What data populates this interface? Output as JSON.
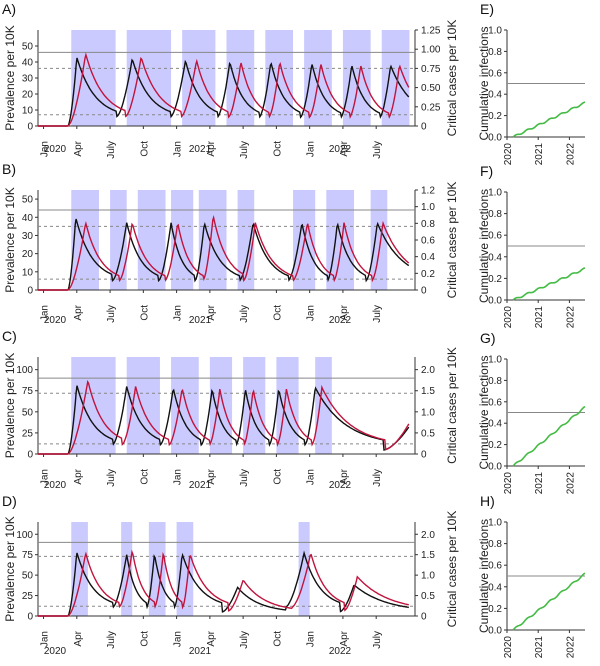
{
  "colors": {
    "shade": "#b8b8ff",
    "black": "#111111",
    "red": "#c0143c",
    "green": "#44bb44",
    "grid_solid": "#888888",
    "grid_dashed": "#888888"
  },
  "chart_data": [
    {
      "panel": "A)",
      "type": "line",
      "ylabel_left": "Prevalence per 10K",
      "ylabel_right": "Critical cases per 10K",
      "x_ticks": [
        "Jan",
        "Apr",
        "July",
        "Oct",
        "Jan",
        "Apr",
        "July",
        "Oct",
        "Jan",
        "Apr",
        "July"
      ],
      "year_labels": [
        "2020",
        "2021",
        "2022"
      ],
      "ylim_left": [
        0,
        60
      ],
      "yticks_left": [
        "0",
        "10",
        "20",
        "30",
        "40",
        "50"
      ],
      "ylim_right": [
        0,
        1.25
      ],
      "yticks_right": [
        "0",
        "0.25",
        "0.50",
        "0.75",
        "1.00",
        "1.25"
      ],
      "hlines_left": {
        "solid": 46,
        "dashed": [
          36,
          7
        ]
      },
      "shaded_months": [
        [
          3,
          7
        ],
        [
          8,
          12
        ],
        [
          13,
          16
        ],
        [
          17,
          19.5
        ],
        [
          20.5,
          23
        ],
        [
          24,
          26.5
        ],
        [
          27.5,
          30
        ],
        [
          31,
          33.5
        ]
      ],
      "series": [
        {
          "peak_months": [
            3.5,
            8.5,
            13.3,
            17.3,
            21.0,
            24.7,
            28.3,
            31.8
          ],
          "peak_values": [
            43,
            42,
            41,
            40,
            40,
            39,
            38,
            38
          ]
        },
        {
          "peak_months": [
            4.3,
            9.3,
            14.3,
            18.3,
            21.8,
            25.5,
            29.1,
            32.6
          ],
          "peak_values": [
            45,
            43,
            41,
            40,
            40,
            39,
            38,
            38
          ]
        }
      ]
    },
    {
      "panel": "B)",
      "type": "line",
      "ylabel_left": "Prevalence per 10K",
      "ylabel_right": "Critical cases per 10K",
      "x_ticks": [
        "Jan",
        "Apr",
        "July",
        "Oct",
        "Jan",
        "Apr",
        "July",
        "Oct",
        "Jan",
        "Apr",
        "July"
      ],
      "year_labels": [
        "2020",
        "2021",
        "2022"
      ],
      "ylim_left": [
        0,
        55
      ],
      "yticks_left": [
        "0",
        "10",
        "20",
        "30",
        "40",
        "50"
      ],
      "ylim_right": [
        0,
        1.2
      ],
      "yticks_right": [
        "0",
        "0.2",
        "0.4",
        "0.6",
        "0.8",
        "1.0",
        "1.2"
      ],
      "hlines_left": {
        "solid": 44,
        "dashed": [
          35,
          6
        ]
      },
      "shaded_months": [
        [
          3,
          5.5
        ],
        [
          6.5,
          8
        ],
        [
          9,
          11.5
        ],
        [
          12,
          14
        ],
        [
          14.5,
          17
        ],
        [
          18,
          19.5
        ],
        [
          23,
          25
        ],
        [
          26,
          28.5
        ],
        [
          30,
          31.5
        ]
      ],
      "series": [
        {
          "peak_months": [
            3.4,
            8.0,
            12.0,
            15.0,
            19.4,
            23.8,
            27.0,
            30.6
          ],
          "peak_values": [
            40,
            37,
            37,
            37,
            37,
            37,
            37,
            37
          ]
        },
        {
          "peak_months": [
            4.3,
            8.5,
            12.6,
            15.8,
            19.6,
            24.3,
            27.6,
            31.1
          ],
          "peak_values": [
            37,
            37,
            37,
            41,
            37,
            37,
            37,
            37
          ]
        }
      ]
    },
    {
      "panel": "C)",
      "type": "line",
      "ylabel_left": "Prevalence per 10K",
      "ylabel_right": "Critical cases per 10K",
      "x_ticks": [
        "Jan",
        "Apr",
        "July",
        "Oct",
        "Jan",
        "Apr",
        "July",
        "Oct",
        "Jan",
        "Apr",
        "July"
      ],
      "year_labels": [
        "2020",
        "2021",
        "2022"
      ],
      "ylim_left": [
        0,
        115
      ],
      "yticks_left": [
        "0",
        "25",
        "50",
        "75",
        "100"
      ],
      "ylim_right": [
        0,
        2.3
      ],
      "yticks_right": [
        "0",
        "0.5",
        "1.0",
        "1.5",
        "2.0"
      ],
      "hlines_left": {
        "solid": 90,
        "dashed": [
          72,
          12
        ]
      },
      "shaded_months": [
        [
          3,
          7
        ],
        [
          8,
          11
        ],
        [
          12,
          14.5
        ],
        [
          15.5,
          17.5
        ],
        [
          18.5,
          20.5
        ],
        [
          21.5,
          23.5
        ],
        [
          25,
          26.5
        ]
      ],
      "series": [
        {
          "peak_months": [
            3.5,
            8.0,
            12.2,
            15.7,
            18.7,
            21.7,
            25.0,
            33.5
          ],
          "peak_values": [
            82,
            80,
            78,
            77,
            77,
            77,
            79,
            33
          ]
        },
        {
          "peak_months": [
            4.5,
            8.8,
            13.0,
            16.4,
            19.4,
            22.4,
            25.6,
            33.5
          ],
          "peak_values": [
            87,
            80,
            78,
            77,
            77,
            77,
            79,
            37
          ]
        }
      ]
    },
    {
      "panel": "D)",
      "type": "line",
      "ylabel_left": "Prevalence per 10K",
      "ylabel_right": "Critical cases per 10K",
      "x_ticks": [
        "Jan",
        "Apr",
        "July",
        "Oct",
        "Jan",
        "Apr",
        "July",
        "Oct",
        "Jan",
        "Apr",
        "July"
      ],
      "year_labels": [
        "2020",
        "2021",
        "2022"
      ],
      "ylim_left": [
        0,
        115
      ],
      "yticks_left": [
        "0",
        "25",
        "50",
        "75",
        "100"
      ],
      "ylim_right": [
        0,
        2.3
      ],
      "yticks_right": [
        "0",
        "0.5",
        "1.0",
        "1.5",
        "2.0"
      ],
      "hlines_left": {
        "solid": 90,
        "dashed": [
          73,
          12
        ]
      },
      "shaded_months": [
        [
          3,
          4.5
        ],
        [
          7.5,
          8.5
        ],
        [
          10,
          11.5
        ],
        [
          12.5,
          14
        ],
        [
          23.5,
          24.5
        ]
      ],
      "series": [
        {
          "peak_months": [
            3.5,
            8.0,
            10.5,
            13.0,
            18.0,
            24.0,
            28.5
          ],
          "peak_values": [
            78,
            75,
            76,
            76,
            35,
            77,
            38
          ]
        },
        {
          "peak_months": [
            4.3,
            8.5,
            11.3,
            13.7,
            18.5,
            24.6,
            28.8
          ],
          "peak_values": [
            77,
            80,
            78,
            76,
            44,
            77,
            48
          ]
        }
      ]
    },
    {
      "panel": "E)",
      "type": "line",
      "ylabel": "Cumulative infections",
      "xlim": [
        2020,
        2022.5
      ],
      "x_ticks": [
        "2020",
        "2021",
        "2022"
      ],
      "ylim": [
        0,
        1.0
      ],
      "yticks": [
        "0.0",
        "0.2",
        "0.4",
        "0.6",
        "0.8",
        "1.0"
      ],
      "hline": 0.5,
      "series": [
        {
          "x": [
            2020.2,
            2022.5
          ],
          "y": [
            0.0,
            0.32
          ]
        }
      ]
    },
    {
      "panel": "F)",
      "type": "line",
      "ylabel": "Cumulative infections",
      "xlim": [
        2020,
        2022.5
      ],
      "x_ticks": [
        "2020",
        "2021",
        "2022"
      ],
      "ylim": [
        0,
        1.0
      ],
      "yticks": [
        "0.0",
        "0.2",
        "0.4",
        "0.6",
        "0.8",
        "1.0"
      ],
      "hline": 0.5,
      "series": [
        {
          "x": [
            2020.2,
            2022.5
          ],
          "y": [
            0.0,
            0.29
          ]
        }
      ]
    },
    {
      "panel": "G)",
      "type": "line",
      "ylabel": "Cumulative infections",
      "xlim": [
        2020,
        2022.5
      ],
      "x_ticks": [
        "2020",
        "2021",
        "2022"
      ],
      "ylim": [
        0,
        1.0
      ],
      "yticks": [
        "0.0",
        "0.2",
        "0.4",
        "0.6",
        "0.8",
        "1.0"
      ],
      "hline": 0.5,
      "series": [
        {
          "x": [
            2020.2,
            2022.5
          ],
          "y": [
            0.0,
            0.55
          ]
        }
      ]
    },
    {
      "panel": "H)",
      "type": "line",
      "ylabel": "Cumulative infections",
      "xlim": [
        2020,
        2022.5
      ],
      "x_ticks": [
        "2020",
        "2021",
        "2022"
      ],
      "ylim": [
        0,
        1.0
      ],
      "yticks": [
        "0.0",
        "0.2",
        "0.4",
        "0.6",
        "0.8",
        "1.0"
      ],
      "hline": 0.5,
      "series": [
        {
          "x": [
            2020.2,
            2022.5
          ],
          "y": [
            0.0,
            0.52
          ]
        }
      ]
    }
  ]
}
